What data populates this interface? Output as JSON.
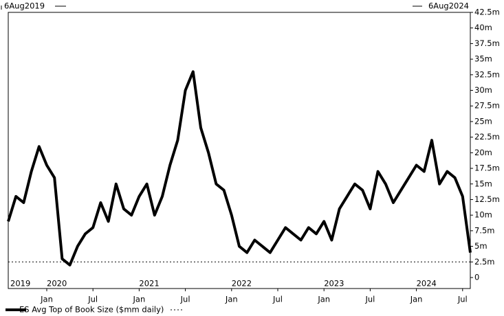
{
  "chart_data": {
    "type": "line",
    "start_label": "6Aug2019",
    "end_label": "6Aug2024",
    "x": [
      "2019-08",
      "2019-09",
      "2019-10",
      "2019-11",
      "2019-12",
      "2020-01",
      "2020-02",
      "2020-03",
      "2020-04",
      "2020-05",
      "2020-06",
      "2020-07",
      "2020-08",
      "2020-09",
      "2020-10",
      "2020-11",
      "2020-12",
      "2021-01",
      "2021-02",
      "2021-03",
      "2021-04",
      "2021-05",
      "2021-06",
      "2021-07",
      "2021-08",
      "2021-09",
      "2021-10",
      "2021-11",
      "2021-12",
      "2022-01",
      "2022-02",
      "2022-03",
      "2022-04",
      "2022-05",
      "2022-06",
      "2022-07",
      "2022-08",
      "2022-09",
      "2022-10",
      "2022-11",
      "2022-12",
      "2023-01",
      "2023-02",
      "2023-03",
      "2023-04",
      "2023-05",
      "2023-06",
      "2023-07",
      "2023-08",
      "2023-09",
      "2023-10",
      "2023-11",
      "2023-12",
      "2024-01",
      "2024-02",
      "2024-03",
      "2024-04",
      "2024-05",
      "2024-06",
      "2024-07",
      "2024-08"
    ],
    "series": [
      {
        "name": "ES Avg Top of Book Size ($mm daily)",
        "color": "#000000",
        "values": [
          9,
          13,
          12,
          17,
          21,
          18,
          16,
          3,
          2,
          5,
          7,
          8,
          12,
          9,
          15,
          11,
          10,
          13,
          15,
          10,
          13,
          18,
          22,
          30,
          33,
          24,
          20,
          15,
          14,
          10,
          5,
          4,
          6,
          5,
          4,
          6,
          8,
          7,
          6,
          8,
          7,
          9,
          6,
          11,
          13,
          15,
          14,
          11,
          17,
          15,
          12,
          14,
          16,
          18,
          17,
          22,
          15,
          17,
          16,
          13,
          4
        ]
      }
    ],
    "hline": 2.5,
    "xlim": [
      "2019-08",
      "2024-08"
    ],
    "xticks": [
      {
        "value": "2020-01",
        "label": "Jan"
      },
      {
        "value": "2020-07",
        "label": "Jul"
      },
      {
        "value": "2021-01",
        "label": "Jan"
      },
      {
        "value": "2021-07",
        "label": "Jul"
      },
      {
        "value": "2022-01",
        "label": "Jan"
      },
      {
        "value": "2022-07",
        "label": "Jul"
      },
      {
        "value": "2023-01",
        "label": "Jan"
      },
      {
        "value": "2023-07",
        "label": "Jul"
      },
      {
        "value": "2024-01",
        "label": "Jan"
      },
      {
        "value": "2024-07",
        "label": "Jul"
      }
    ],
    "year_labels": [
      {
        "value": "2019-08",
        "label": "2019"
      },
      {
        "value": "2020-01",
        "label": "2020"
      },
      {
        "value": "2021-01",
        "label": "2021"
      },
      {
        "value": "2022-01",
        "label": "2022"
      },
      {
        "value": "2023-01",
        "label": "2023"
      },
      {
        "value": "2024-01",
        "label": "2024"
      }
    ],
    "ylim": [
      0,
      42.5
    ],
    "yticks": [
      0,
      {
        "value": 2.5,
        "label": "2.5m"
      },
      {
        "value": 5,
        "label": "5m"
      },
      {
        "value": 7.5,
        "label": "7.5m"
      },
      {
        "value": 10,
        "label": "10m"
      },
      {
        "value": 12.5,
        "label": "12.5m"
      },
      {
        "value": 15,
        "label": "15m"
      },
      {
        "value": 17.5,
        "label": "17.5m"
      },
      {
        "value": 20,
        "label": "20m"
      },
      {
        "value": 22.5,
        "label": "22.5m"
      },
      {
        "value": 25,
        "label": "25m"
      },
      {
        "value": 27.5,
        "label": "27.5m"
      },
      {
        "value": 30,
        "label": "30m"
      },
      {
        "value": 32.5,
        "label": "32.5m"
      },
      {
        "value": 35,
        "label": "35m"
      },
      {
        "value": 37.5,
        "label": "37.5m"
      },
      {
        "value": 40,
        "label": "40m"
      },
      {
        "value": 42.5,
        "label": "42.5m"
      }
    ]
  }
}
